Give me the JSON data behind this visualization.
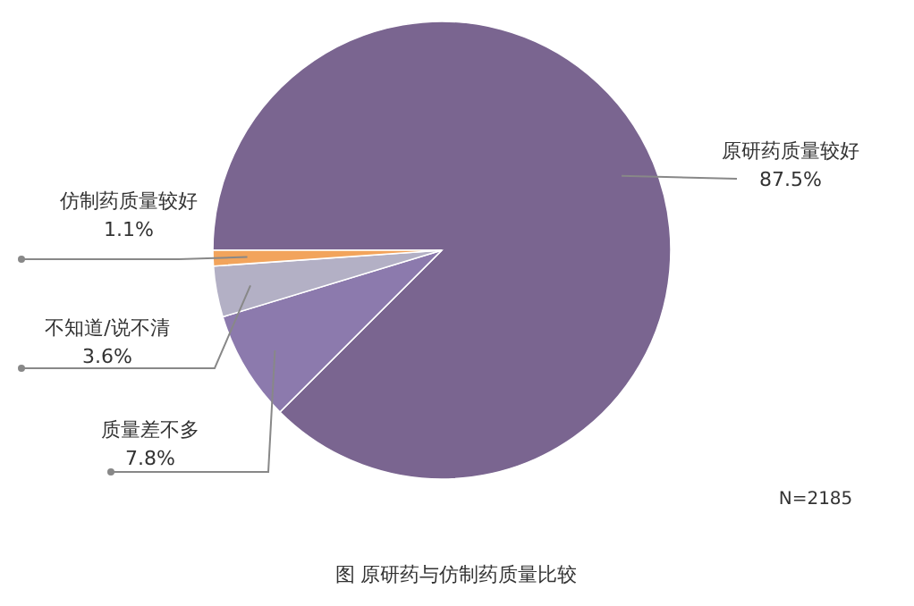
{
  "chart_data": {
    "type": "pie",
    "title": "图 原研药与仿制药质量比较",
    "categories": [
      "原研药质量较好",
      "质量差不多",
      "不知道/说不清",
      "仿制药质量较好"
    ],
    "values": [
      87.5,
      7.8,
      3.6,
      1.1
    ],
    "colors": [
      "#7a6590",
      "#8c7aad",
      "#b3b0c5",
      "#f2a45c"
    ],
    "value_labels": [
      "87.5%",
      "7.8%",
      "3.6%",
      "1.1%"
    ],
    "legend": false,
    "annotations": [
      "N=2185"
    ]
  }
}
